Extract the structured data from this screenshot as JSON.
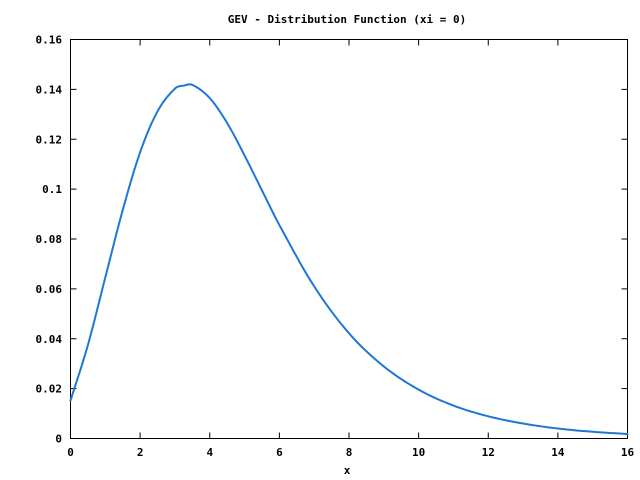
{
  "chart_data": {
    "type": "line",
    "title": "GEV - Distribution Function (xi = 0)",
    "xlabel": "x",
    "ylabel": "",
    "xlim": [
      0,
      16
    ],
    "ylim": [
      0,
      0.16
    ],
    "x_ticks": [
      0,
      2,
      4,
      6,
      8,
      10,
      12,
      14,
      16
    ],
    "x_tick_labels": [
      "0",
      "2",
      "4",
      "6",
      "8",
      "10",
      "12",
      "14",
      "16"
    ],
    "y_ticks": [
      0,
      0.02,
      0.04,
      0.06,
      0.08,
      0.1,
      0.12,
      0.14,
      0.16
    ],
    "y_tick_labels": [
      "0",
      "0.02",
      "0.04",
      "0.06",
      "0.08",
      "0.1",
      "0.12",
      "0.14",
      "0.16"
    ],
    "grid": false,
    "legend": "none",
    "series": [
      {
        "color": "#1f77d4",
        "x": [
          0,
          0.5,
          1.0,
          1.5,
          2.0,
          2.5,
          3.0,
          3.25,
          3.5,
          4.0,
          4.5,
          5.0,
          5.5,
          6.0,
          7.0,
          8.0,
          9.0,
          10.0,
          11.0,
          12.0,
          13.0,
          14.0,
          15.0,
          16.0
        ],
        "y": [
          0.0152,
          0.0375,
          0.0646,
          0.0916,
          0.1148,
          0.1312,
          0.1403,
          0.1415,
          0.1418,
          0.1365,
          0.1265,
          0.1135,
          0.0995,
          0.0856,
          0.061,
          0.0422,
          0.0289,
          0.0196,
          0.0132,
          0.0089,
          0.006,
          0.004,
          0.0027,
          0.0018
        ]
      }
    ]
  }
}
